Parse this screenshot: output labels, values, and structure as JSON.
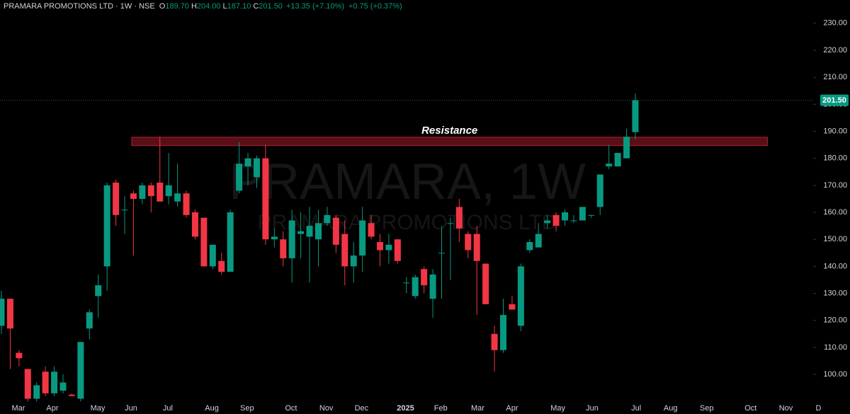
{
  "chart_data": {
    "type": "candlestick",
    "header": {
      "title": "PRAMARA PROMOTIONS LTD · 1W · NSE",
      "ohlc": [
        {
          "key": "O",
          "text": "189.70"
        },
        {
          "key": "H",
          "text": "204.00"
        },
        {
          "key": "L",
          "text": "187.10"
        },
        {
          "key": "C",
          "text": "201.50"
        }
      ],
      "change": "+13.35 (+7.10%)",
      "change2": "+0.75 (+0.37%)"
    },
    "watermark": [
      "PRAMARA, 1W",
      "PRAMARA PROMOTIONS LTD"
    ],
    "up_color": "#089981",
    "down_color": "#f23645",
    "x": [
      0,
      1,
      2,
      3,
      4,
      5,
      6,
      7,
      8,
      9,
      10,
      11,
      12,
      13,
      14,
      15,
      16,
      17,
      18,
      19,
      20,
      21,
      22,
      23,
      24,
      25,
      26,
      27,
      28,
      29,
      30,
      31,
      32,
      33,
      34,
      35,
      36,
      37,
      38,
      39,
      40,
      41,
      42,
      43,
      44,
      45,
      46,
      47,
      48,
      49,
      50,
      51,
      52,
      53,
      54,
      55,
      56,
      57,
      58,
      59,
      60,
      61,
      62,
      63,
      64,
      65,
      66,
      67,
      68,
      69,
      70,
      71,
      72
    ],
    "open": [
      118,
      128,
      108,
      102,
      91,
      101,
      93,
      94,
      92.5,
      91,
      117,
      129,
      140,
      171,
      161,
      167,
      165,
      170,
      171,
      166,
      164,
      167,
      160,
      158,
      140,
      142,
      138,
      168,
      177,
      173,
      180,
      150,
      150,
      143,
      152,
      151,
      150,
      156,
      158,
      152,
      140,
      144,
      156,
      149,
      146,
      150,
      134,
      129,
      139,
      128,
      145,
      156,
      162,
      152,
      152,
      141,
      115,
      109,
      126,
      118,
      146,
      147,
      156,
      159,
      157,
      157,
      157,
      159,
      162,
      177,
      177,
      180,
      189.7
    ],
    "high": [
      131,
      128,
      109,
      102,
      97,
      103,
      103,
      100,
      93,
      112,
      124,
      137,
      171,
      172,
      166,
      168,
      171,
      171,
      188,
      182,
      178,
      168,
      161,
      158,
      148,
      145,
      161,
      186,
      182,
      181,
      185,
      154,
      153,
      161,
      160,
      162,
      161,
      162,
      159,
      157,
      149,
      162,
      159,
      152,
      152,
      150,
      136,
      137,
      140,
      139,
      155,
      158,
      165,
      153,
      155,
      141,
      118,
      128,
      129,
      141,
      150,
      156,
      159,
      160,
      161,
      159,
      162,
      159,
      174,
      185,
      182,
      191,
      204
    ],
    "low": [
      115,
      102,
      103,
      90,
      90,
      92,
      92,
      93,
      92,
      90,
      113,
      121,
      131,
      155,
      152,
      144,
      163,
      160,
      164,
      163,
      162,
      158,
      150,
      140,
      139,
      137,
      138,
      167,
      170,
      169,
      148,
      147,
      140,
      134,
      143,
      134,
      140,
      155,
      145,
      133,
      134,
      138,
      150,
      140,
      141,
      141,
      130,
      128,
      130,
      121,
      128,
      135,
      149,
      143,
      122,
      126,
      101,
      108,
      124,
      116,
      145,
      147,
      154,
      153,
      155,
      156,
      157,
      158,
      159,
      176,
      177,
      180,
      187.1
    ],
    "close": [
      128,
      117,
      106,
      91,
      96,
      93,
      101,
      97,
      92,
      112,
      123,
      133,
      170,
      159,
      161,
      165,
      170,
      166,
      164,
      170,
      167,
      159,
      151,
      140,
      148,
      138,
      160,
      178,
      180,
      180,
      150,
      151,
      143,
      157,
      153,
      155,
      156,
      159,
      148,
      140,
      144,
      157,
      151,
      146,
      148,
      142,
      134,
      136,
      133,
      137,
      145,
      156,
      154,
      146,
      142,
      126,
      109,
      122,
      124,
      140,
      149,
      152,
      157,
      155,
      160,
      157,
      162,
      159,
      174,
      178,
      182,
      188,
      201.5
    ],
    "xlim": [
      -0.16,
      93.0
    ],
    "xticks": [
      {
        "value": 1.93,
        "label": "Mar"
      },
      {
        "value": 5.79,
        "label": "Apr"
      },
      {
        "value": 10.94,
        "label": "May"
      },
      {
        "value": 14.72,
        "label": "Jun"
      },
      {
        "value": 18.9,
        "label": "Jul"
      },
      {
        "value": 23.9,
        "label": "Aug"
      },
      {
        "value": 27.9,
        "label": "Sep"
      },
      {
        "value": 32.9,
        "label": "Oct"
      },
      {
        "value": 36.9,
        "label": "Nov"
      },
      {
        "value": 40.9,
        "label": "Dec"
      },
      {
        "value": 45.9,
        "label": "2025"
      },
      {
        "value": 49.9,
        "label": "Feb"
      },
      {
        "value": 54.1,
        "label": "Mar"
      },
      {
        "value": 58.0,
        "label": "Apr"
      },
      {
        "value": 63.2,
        "label": "May"
      },
      {
        "value": 67.1,
        "label": "Jun"
      },
      {
        "value": 72.1,
        "label": "Jul"
      },
      {
        "value": 76.0,
        "label": "Aug"
      },
      {
        "value": 80.1,
        "label": "Sep"
      },
      {
        "value": 85.1,
        "label": "Oct"
      },
      {
        "value": 89.1,
        "label": "Nov"
      },
      {
        "value": 92.8,
        "label": "D"
      }
    ],
    "ylim": [
      89.8,
      238.6
    ],
    "yticks": [
      {
        "value": 100,
        "label": "100.00"
      },
      {
        "value": 110,
        "label": "110.00"
      },
      {
        "value": 120,
        "label": "120.00"
      },
      {
        "value": 130,
        "label": "130.00"
      },
      {
        "value": 140,
        "label": "140.00"
      },
      {
        "value": 150,
        "label": "150.00"
      },
      {
        "value": 160,
        "label": "160.00"
      },
      {
        "value": 170,
        "label": "170.00"
      },
      {
        "value": 180,
        "label": "180.00"
      },
      {
        "value": 190,
        "label": "190.00"
      },
      {
        "value": 200,
        "label": "200.00"
      },
      {
        "value": 210,
        "label": "210.00"
      },
      {
        "value": 220,
        "label": "220.00"
      },
      {
        "value": 230,
        "label": "230.00"
      }
    ],
    "last_price": {
      "value": 201.5,
      "label": "201.50"
    },
    "zone": {
      "label": "Resistance",
      "xlim": [
        14.8,
        87.0
      ],
      "ylim": [
        184.7,
        187.8
      ],
      "color": "#5a0f16"
    },
    "grid": false
  }
}
